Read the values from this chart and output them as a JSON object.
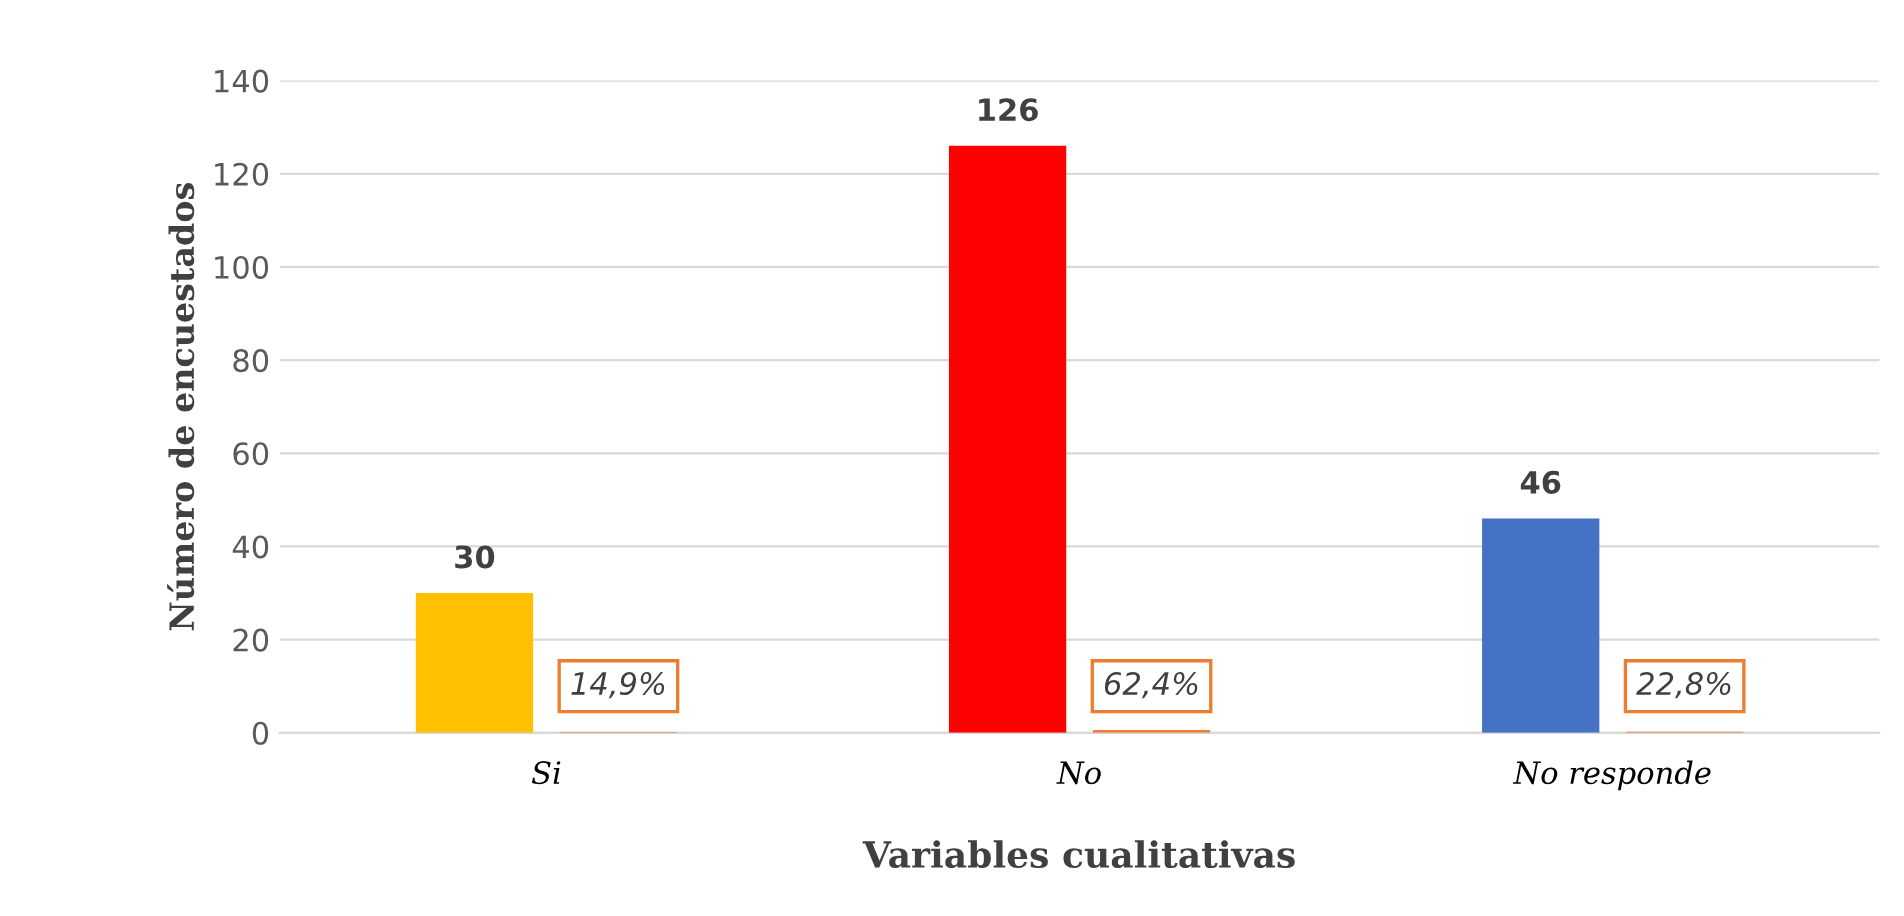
{
  "chart_data": {
    "type": "bar",
    "xlabel": "Variables cualitativas",
    "ylabel": "Número de encuestados",
    "categories": [
      "Si",
      "No",
      "No responde"
    ],
    "series": [
      {
        "colors": [
          "#ffc000",
          "#ff0000",
          "#4472c4"
        ],
        "values": [
          30,
          126,
          46
        ],
        "value_labels": [
          "30",
          "126",
          "46"
        ]
      },
      {
        "color": "#ed7d31",
        "values": [
          0.149,
          0.624,
          0.228
        ],
        "value_labels": [
          "14,9%",
          "62,4%",
          "22,8%"
        ]
      }
    ],
    "ylim": [
      0,
      140
    ],
    "yticks": [
      0,
      20,
      40,
      60,
      80,
      100,
      120,
      140
    ],
    "grid": "y",
    "legend": false
  }
}
